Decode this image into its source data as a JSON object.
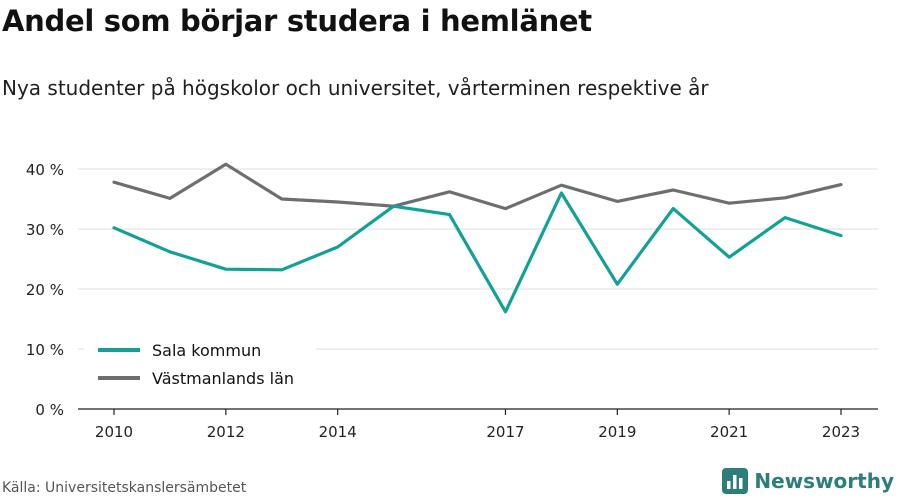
{
  "title": "Andel som börjar studera i hemlänet",
  "subtitle": "Nya studenter på högskolor och universitet, vårterminen respektive år",
  "source": "Källa: Universitetskanslersämbetet",
  "brand": {
    "name": "Newsworthy",
    "color": "#2d7d78"
  },
  "chart_data": {
    "type": "line",
    "x": [
      2010,
      2011,
      2012,
      2013,
      2014,
      2015,
      2016,
      2017,
      2018,
      2019,
      2020,
      2021,
      2022,
      2023
    ],
    "x_tick_labels": [
      "2010",
      "2012",
      "2014",
      "2017",
      "2019",
      "2021",
      "2023"
    ],
    "y_tick_labels": [
      "0 %",
      "10 %",
      "20 %",
      "30 %",
      "40 %"
    ],
    "ylim": [
      0,
      40
    ],
    "grid": true,
    "legend_position": "bottom-left",
    "series": [
      {
        "name": "Sala kommun",
        "color": "#13a096",
        "values": [
          30.2,
          26.2,
          23.3,
          23.2,
          27.0,
          33.8,
          32.4,
          16.2,
          36.0,
          20.8,
          33.4,
          25.3,
          31.9,
          28.9
        ]
      },
      {
        "name": "Västmanlands län",
        "color": "#6e6d72",
        "values": [
          37.8,
          35.1,
          40.8,
          35.0,
          34.5,
          33.8,
          36.2,
          33.4,
          37.3,
          34.6,
          36.5,
          34.3,
          35.2,
          37.4
        ]
      }
    ]
  }
}
